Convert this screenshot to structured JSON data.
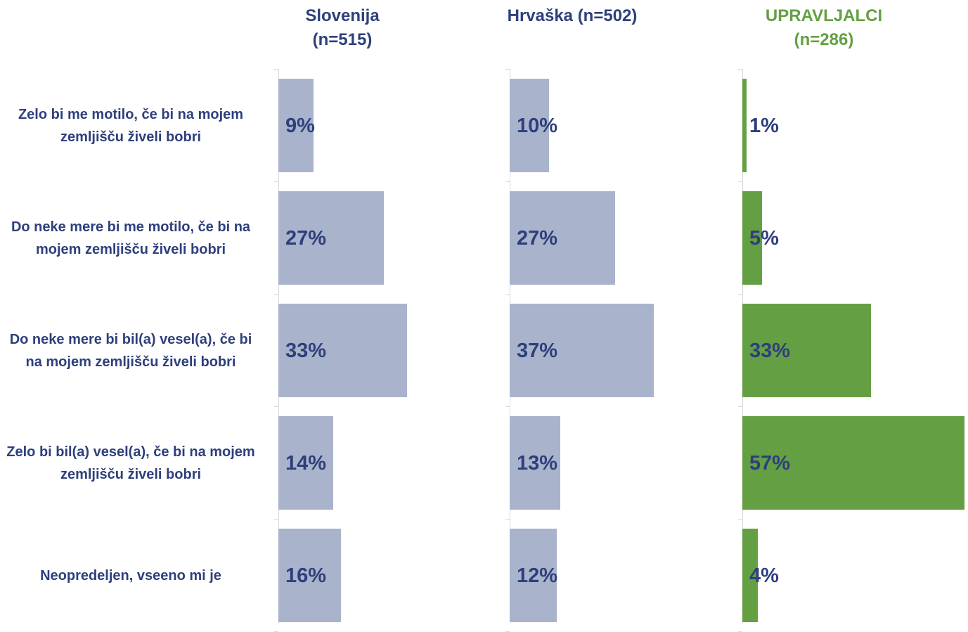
{
  "chart_data": {
    "type": "bar",
    "orientation": "horizontal",
    "categories": [
      "Zelo bi me motilo, če bi na mojem zemljišču živeli bobri",
      "Do neke mere bi me motilo, če bi na mojem zemljišču živeli bobri",
      "Do neke mere bi bil(a) vesel(a), če bi na mojem zemljišču živeli bobri",
      "Zelo bi bil(a) vesel(a), če bi na mojem zemljišču živeli bobri",
      "Neopredeljen, vseeno mi je"
    ],
    "xlim": [
      0,
      60
    ],
    "series": [
      {
        "name": "Slovenija (n=515)",
        "color": "#a9b3cb",
        "values": [
          9,
          27,
          33,
          14,
          16
        ],
        "value_labels": [
          "9%",
          "27%",
          "33%",
          "14%",
          "16%"
        ]
      },
      {
        "name": "Hrvaška (n=502)",
        "color": "#a9b3cb",
        "values": [
          10,
          27,
          37,
          13,
          12
        ],
        "value_labels": [
          "10%",
          "27%",
          "37%",
          "13%",
          "12%"
        ]
      },
      {
        "name": "UPRAVLJALCI (n=286)",
        "color": "#64a043",
        "values": [
          1,
          5,
          33,
          57,
          4
        ],
        "value_labels": [
          "1%",
          "5%",
          "33%",
          "57%",
          "4%"
        ]
      }
    ]
  }
}
